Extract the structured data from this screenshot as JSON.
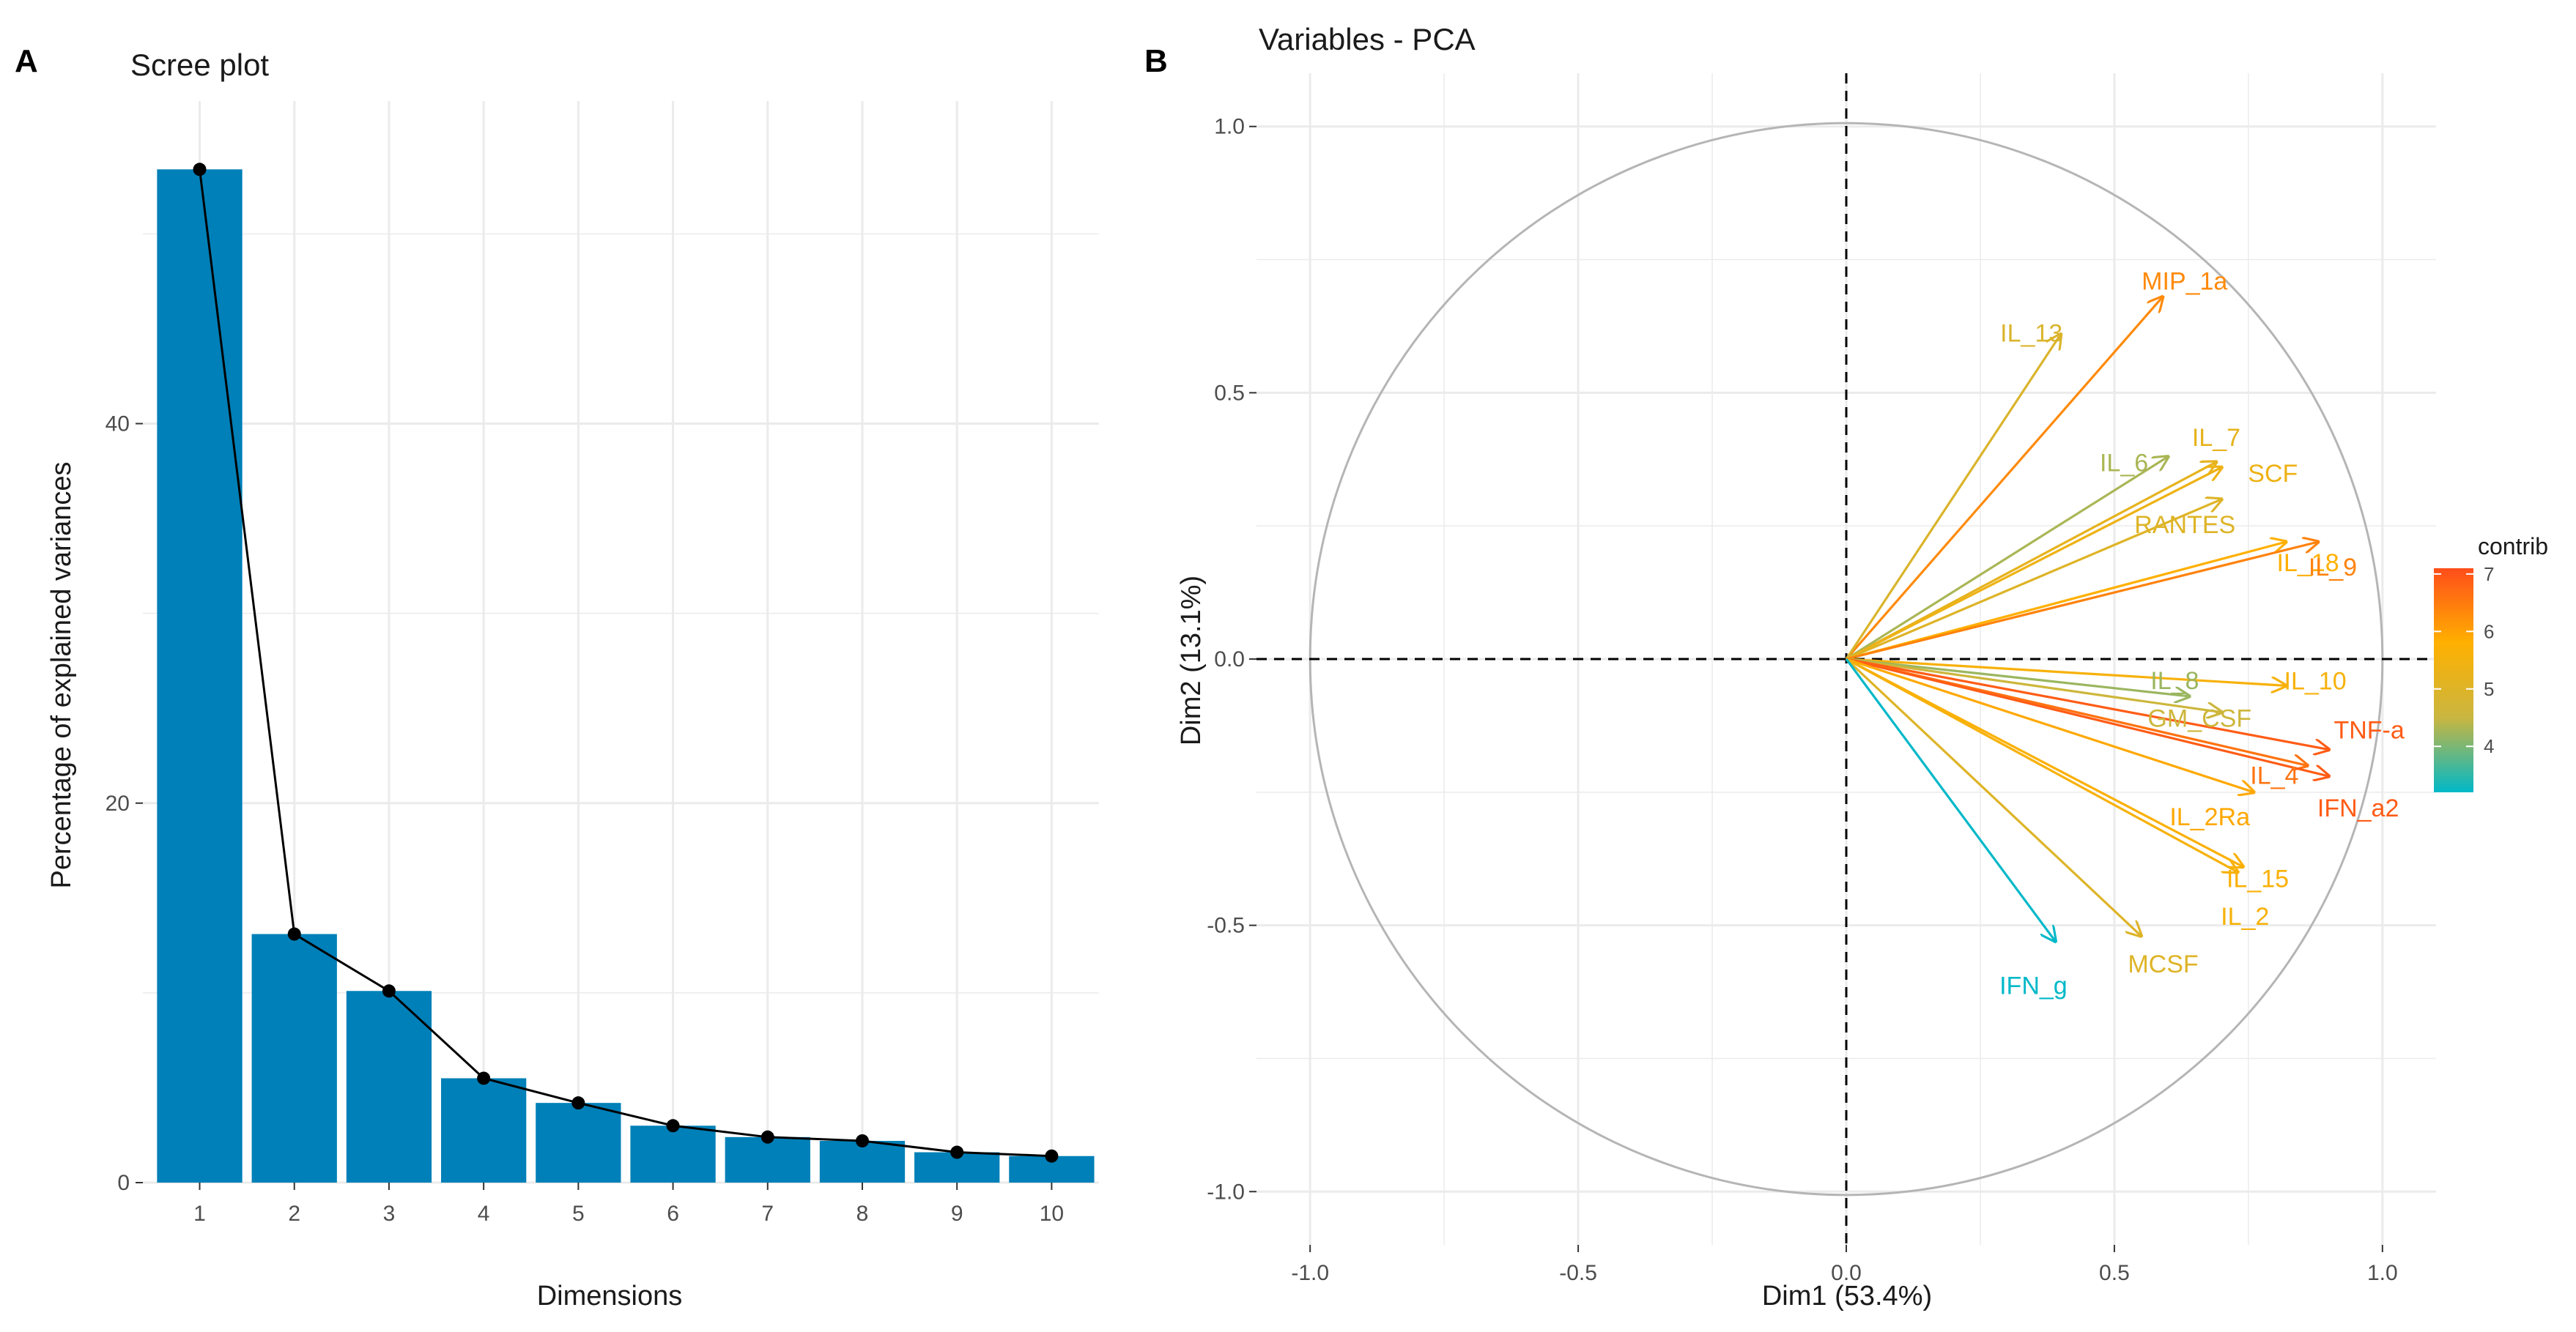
{
  "panels": {
    "a_label": "A",
    "b_label": "B"
  },
  "chart_data": [
    {
      "type": "bar",
      "title": "Scree plot",
      "xlabel": "Dimensions",
      "ylabel": "Percentage of explained variances",
      "categories": [
        "1",
        "2",
        "3",
        "4",
        "5",
        "6",
        "7",
        "8",
        "9",
        "10"
      ],
      "values": [
        53.4,
        13.1,
        10.1,
        5.5,
        4.2,
        3.0,
        2.4,
        2.2,
        1.6,
        1.4
      ],
      "ylim": [
        0,
        57
      ],
      "yticks": [
        0,
        20,
        40
      ],
      "line": true,
      "bar_color": "#0080b8",
      "line_color": "#000000"
    },
    {
      "type": "scatter",
      "subtype": "pca-variable-correlation-circle",
      "title": "Variables - PCA",
      "xlabel": "Dim1 (53.4%)",
      "ylabel": "Dim2 (13.1%)",
      "xlim": [
        -1.1,
        1.1
      ],
      "ylim": [
        -1.1,
        1.1
      ],
      "xticks": [
        -1.0,
        -0.5,
        0.0,
        0.5,
        1.0
      ],
      "yticks": [
        -1.0,
        -0.5,
        0.0,
        0.5,
        1.0
      ],
      "tick_labels": [
        "-1.0",
        "-0.5",
        "0.0",
        "0.5",
        "1.0"
      ],
      "legend": {
        "title": "contrib",
        "ticks": [
          4,
          5,
          6,
          7
        ],
        "range": [
          3.2,
          7.1
        ],
        "colors": [
          "#00b8c8",
          "#c9b640",
          "#ffb000",
          "#ff4d1a"
        ],
        "position": "right"
      },
      "variables": [
        {
          "name": "MIP_1a",
          "x": 0.59,
          "y": 0.68,
          "contrib": 6.3
        },
        {
          "name": "IL_13",
          "x": 0.4,
          "y": 0.61,
          "contrib": 4.9
        },
        {
          "name": "IL_7",
          "x": 0.69,
          "y": 0.37,
          "contrib": 5.2
        },
        {
          "name": "IL_6",
          "x": 0.6,
          "y": 0.38,
          "contrib": 4.3
        },
        {
          "name": "SCF",
          "x": 0.7,
          "y": 0.36,
          "contrib": 5.4
        },
        {
          "name": "RANTES",
          "x": 0.7,
          "y": 0.3,
          "contrib": 5.0
        },
        {
          "name": "IL_18",
          "x": 0.82,
          "y": 0.22,
          "contrib": 5.8
        },
        {
          "name": "IL_9",
          "x": 0.88,
          "y": 0.22,
          "contrib": 6.4
        },
        {
          "name": "IL_10",
          "x": 0.82,
          "y": -0.05,
          "contrib": 5.6
        },
        {
          "name": "IL_8",
          "x": 0.64,
          "y": -0.07,
          "contrib": 4.2
        },
        {
          "name": "GM_CSF",
          "x": 0.7,
          "y": -0.1,
          "contrib": 4.6
        },
        {
          "name": "TNF-a",
          "x": 0.9,
          "y": -0.17,
          "contrib": 6.9
        },
        {
          "name": "IL_4",
          "x": 0.86,
          "y": -0.2,
          "contrib": 6.6
        },
        {
          "name": "IFN_a2",
          "x": 0.9,
          "y": -0.22,
          "contrib": 6.9
        },
        {
          "name": "IL_2Ra",
          "x": 0.76,
          "y": -0.25,
          "contrib": 5.9
        },
        {
          "name": "IL_15",
          "x": 0.74,
          "y": -0.39,
          "contrib": 5.7
        },
        {
          "name": "IL_2",
          "x": 0.73,
          "y": -0.4,
          "contrib": 5.6
        },
        {
          "name": "MCSF",
          "x": 0.55,
          "y": -0.52,
          "contrib": 5.0
        },
        {
          "name": "IFN_g",
          "x": 0.39,
          "y": -0.53,
          "contrib": 3.2
        }
      ]
    }
  ]
}
